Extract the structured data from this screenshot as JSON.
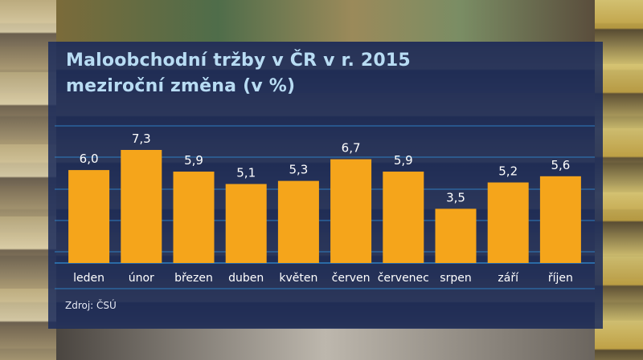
{
  "title_line1": "Maloobchodní tržby v ČR v r. 2015",
  "title_line2": "meziroční změna (v %)",
  "source": "Zdroj: ČSÚ",
  "colors": {
    "bar": "#f5a51b",
    "grid": "#2f7ec0",
    "label": "#ffffff",
    "title": "#b8dcf3",
    "panel": "#1c2c5c"
  },
  "chart_data": {
    "type": "bar",
    "title": "Maloobchodní tržby v ČR v r. 2015 meziroční změna (v %)",
    "categories": [
      "leden",
      "únor",
      "březen",
      "duben",
      "květen",
      "červen",
      "červenec",
      "srpen",
      "září",
      "říjen"
    ],
    "values": [
      6.0,
      7.3,
      5.9,
      5.1,
      5.3,
      6.7,
      5.9,
      3.5,
      5.2,
      5.6
    ],
    "value_labels": [
      "6,0",
      "7,3",
      "5,9",
      "5,1",
      "5,3",
      "6,7",
      "5,9",
      "3,5",
      "5,2",
      "5,6"
    ],
    "xlabel": "",
    "ylabel": "",
    "ylim": [
      0,
      7.3
    ],
    "grid": true
  }
}
